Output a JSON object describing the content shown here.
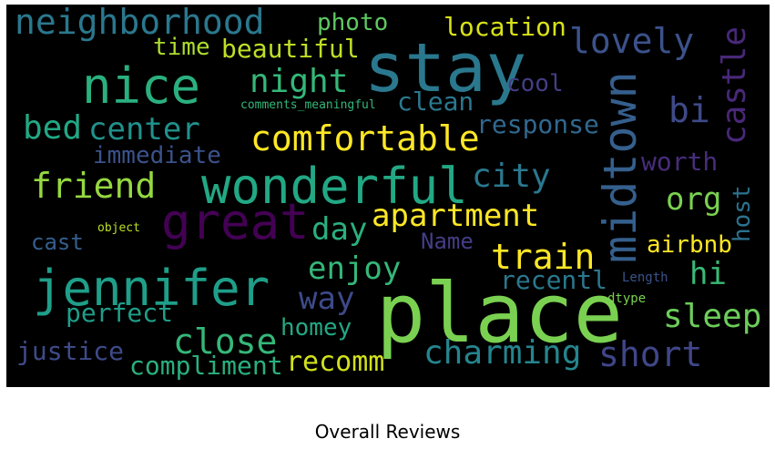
{
  "caption": "Overall Reviews",
  "words": [
    {
      "text": "place",
      "color": "#7ad151"
    },
    {
      "text": "stay",
      "color": "#2a788e"
    },
    {
      "text": "great",
      "color": "#440154"
    },
    {
      "text": "midtown",
      "color": "#355f8d"
    },
    {
      "text": "wonderful",
      "color": "#22a884"
    },
    {
      "text": "jennifer",
      "color": "#1f9e89"
    },
    {
      "text": "nice",
      "color": "#2ab07f"
    },
    {
      "text": "neighborhood",
      "color": "#2a788e"
    },
    {
      "text": "comfortable",
      "color": "#fde725"
    },
    {
      "text": "charming",
      "color": "#25858e"
    },
    {
      "text": "short",
      "color": "#404688"
    },
    {
      "text": "castle",
      "color": "#482878"
    },
    {
      "text": "lovely",
      "color": "#3b528b"
    },
    {
      "text": "apartment",
      "color": "#fde725"
    },
    {
      "text": "train",
      "color": "#fde725"
    },
    {
      "text": "close",
      "color": "#35b779"
    },
    {
      "text": "friend",
      "color": "#95d840"
    },
    {
      "text": "center",
      "color": "#21918c"
    },
    {
      "text": "night",
      "color": "#35b779"
    },
    {
      "text": "sleep",
      "color": "#6ccd5a"
    },
    {
      "text": "city",
      "color": "#2a788e"
    },
    {
      "text": "enjoy",
      "color": "#35b779"
    },
    {
      "text": "bed",
      "color": "#22a884"
    },
    {
      "text": "way",
      "color": "#3e4a89"
    },
    {
      "text": "day",
      "color": "#2ab07f"
    },
    {
      "text": "beautiful",
      "color": "#bddf26"
    },
    {
      "text": "location",
      "color": "#d8e219"
    },
    {
      "text": "org",
      "color": "#7ad151"
    },
    {
      "text": "bi",
      "color": "#3e4a89"
    },
    {
      "text": "hi",
      "color": "#3aba76"
    },
    {
      "text": "response",
      "color": "#31688e"
    },
    {
      "text": "perfect",
      "color": "#1f9e89"
    },
    {
      "text": "compliment",
      "color": "#2ab07f"
    },
    {
      "text": "justice",
      "color": "#3e4a89"
    },
    {
      "text": "airbnb",
      "color": "#fde725"
    },
    {
      "text": "recomm",
      "color": "#d2e21b"
    },
    {
      "text": "worth",
      "color": "#472d7b"
    },
    {
      "text": "recentl",
      "color": "#2a788e"
    },
    {
      "text": "homey",
      "color": "#22a884"
    },
    {
      "text": "host",
      "color": "#2c728e"
    },
    {
      "text": "immediate",
      "color": "#3b528b"
    },
    {
      "text": "clean",
      "color": "#2a788e"
    },
    {
      "text": "time",
      "color": "#addc30"
    },
    {
      "text": "photo",
      "color": "#5ec962"
    },
    {
      "text": "cool",
      "color": "#433e85"
    },
    {
      "text": "Name",
      "color": "#433e85"
    },
    {
      "text": "cast",
      "color": "#355f8d"
    },
    {
      "text": "comments_meaningful",
      "color": "#35b779"
    },
    {
      "text": "object",
      "color": "#bddf26"
    },
    {
      "text": "Length",
      "color": "#3b528b"
    },
    {
      "text": "dtype",
      "color": "#7ad151"
    }
  ]
}
